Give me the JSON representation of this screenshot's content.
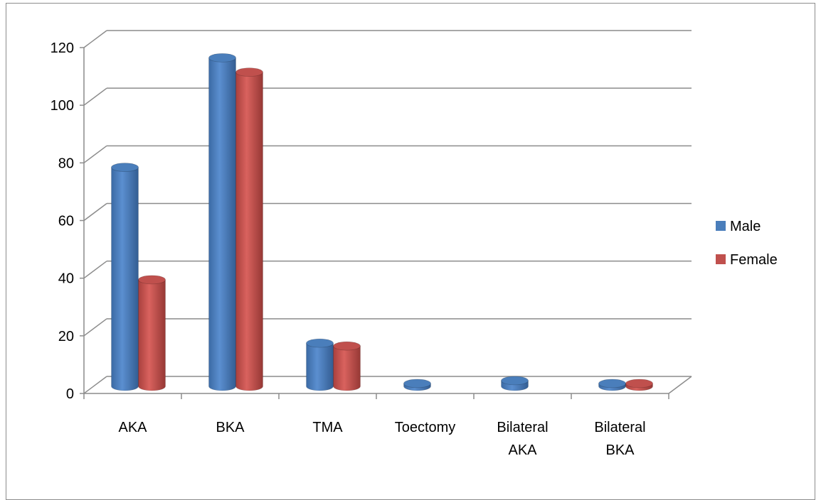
{
  "chart_data": {
    "type": "bar",
    "title": "",
    "xlabel": "",
    "ylabel": "",
    "categories": [
      [
        "AKA"
      ],
      [
        "BKA"
      ],
      [
        "TMA"
      ],
      [
        "Toectomy"
      ],
      [
        "Bilateral",
        "AKA"
      ],
      [
        "Bilateral",
        "BKA"
      ]
    ],
    "series": [
      {
        "name": "Male",
        "color": "#4a7ebb",
        "values": [
          76,
          114,
          15,
          1,
          2,
          1
        ]
      },
      {
        "name": "Female",
        "color": "#c0504d",
        "values": [
          37,
          109,
          14,
          0,
          0,
          1
        ]
      }
    ],
    "ylim": [
      0,
      120
    ],
    "yticks": [
      0,
      20,
      40,
      60,
      80,
      100,
      120
    ],
    "grid": true,
    "legend": "right",
    "style": "3d-cylinder"
  }
}
